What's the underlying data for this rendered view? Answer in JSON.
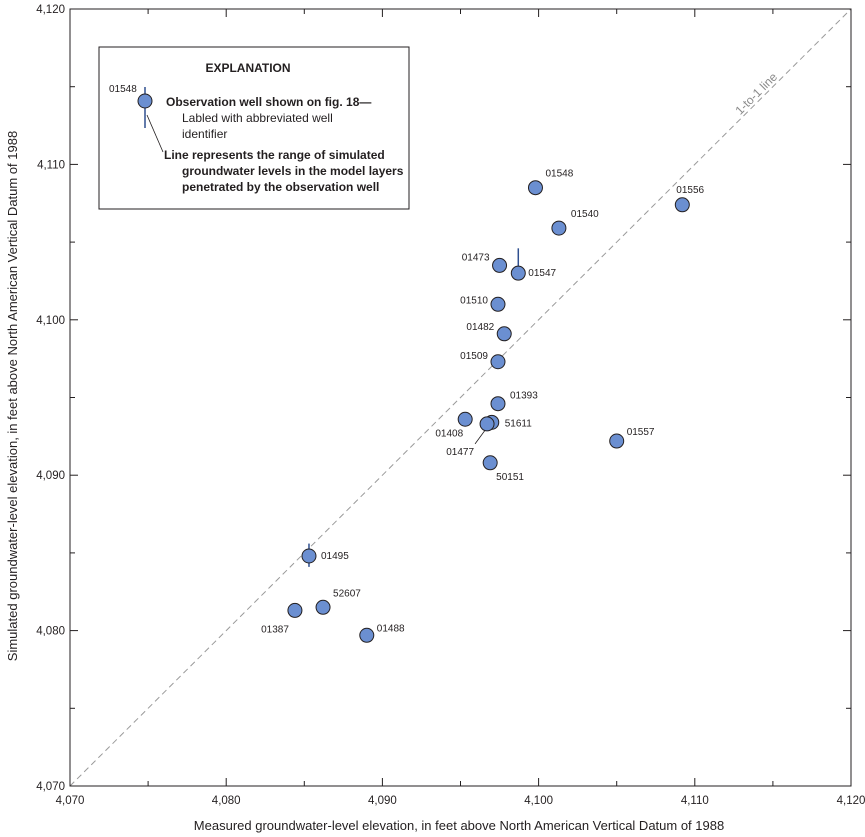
{
  "chart_data": {
    "type": "scatter",
    "xlabel": "Measured groundwater-level elevation, in feet above North American Vertical Datum of 1988",
    "ylabel": "Simulated groundwater-level elevation, in feet above North American Vertical Datum of 1988",
    "xlim": [
      4070,
      4120
    ],
    "ylim": [
      4070,
      4120
    ],
    "xticks": [
      4070,
      4080,
      4090,
      4100,
      4110,
      4120
    ],
    "yticks": [
      4070,
      4080,
      4090,
      4100,
      4110,
      4120
    ],
    "x_tick_labels": [
      "4,070",
      "4,080",
      "4,090",
      "4,100",
      "4,110",
      "4,120"
    ],
    "y_tick_labels": [
      "4,070",
      "4,080",
      "4,090",
      "4,100",
      "4,110",
      "4,120"
    ],
    "grid": false,
    "reference_line": {
      "label": "1-to-1 line",
      "style": "dashed",
      "color": "#9a9a9a"
    },
    "marker_color": "#6b8fd1",
    "points": [
      {
        "id": "01548",
        "x": 4099.8,
        "y": 4108.5
      },
      {
        "id": "01556",
        "x": 4109.2,
        "y": 4107.4
      },
      {
        "id": "01540",
        "x": 4101.3,
        "y": 4105.9
      },
      {
        "id": "01473",
        "x": 4097.5,
        "y": 4103.5
      },
      {
        "id": "01547",
        "x": 4098.7,
        "y": 4103.0,
        "range": [
          4102.6,
          4104.6
        ]
      },
      {
        "id": "01510",
        "x": 4097.4,
        "y": 4101.0
      },
      {
        "id": "01482",
        "x": 4097.8,
        "y": 4099.1
      },
      {
        "id": "01509",
        "x": 4097.4,
        "y": 4097.3
      },
      {
        "id": "01393",
        "x": 4097.4,
        "y": 4094.6
      },
      {
        "id": "01408",
        "x": 4095.3,
        "y": 4093.6
      },
      {
        "id": "51611",
        "x": 4097.0,
        "y": 4093.4
      },
      {
        "id": "01477",
        "x": 4096.7,
        "y": 4093.3
      },
      {
        "id": "01557",
        "x": 4105.0,
        "y": 4092.2
      },
      {
        "id": "50151",
        "x": 4096.9,
        "y": 4090.8
      },
      {
        "id": "01495",
        "x": 4085.3,
        "y": 4084.8,
        "range": [
          4084.1,
          4085.6
        ]
      },
      {
        "id": "52607",
        "x": 4086.2,
        "y": 4081.5
      },
      {
        "id": "01387",
        "x": 4084.4,
        "y": 4081.3
      },
      {
        "id": "01488",
        "x": 4089.0,
        "y": 4079.7
      }
    ],
    "legend": {
      "title": "EXPLANATION",
      "sample_id": "01548",
      "marker_line1": "Observation well shown on fig. 18—",
      "marker_line2": "Labled with abbreviated well",
      "marker_line3": "identifier",
      "range_line1": "Line represents the range of simulated",
      "range_line2": "groundwater levels in the model layers",
      "range_line3": "penetrated by the observation well",
      "placement": "top-left"
    }
  }
}
